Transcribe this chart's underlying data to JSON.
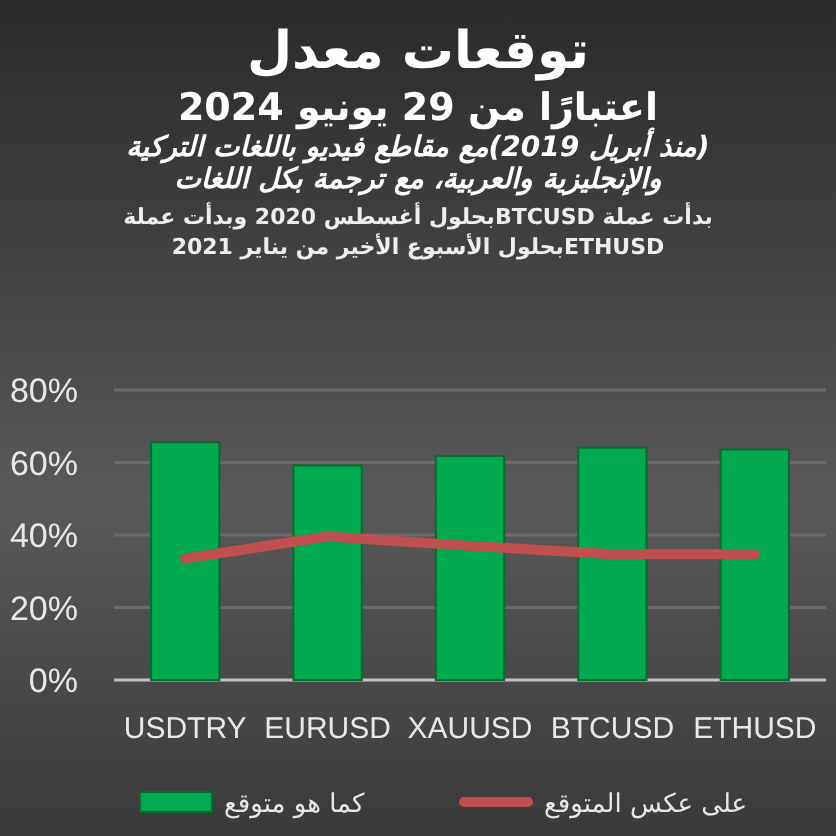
{
  "chart_data": {
    "type": "bar",
    "title": "توقعات معدل",
    "subtitle": "اعتبارًا من 29 يونيو 2024",
    "annotations": [
      "(منذ أبريل 2019)مع مقاطع فيديو باللغات التركية والإنجليزية والعربية، مع ترجمة بكل اللغات",
      "بدأت عملة  BTCUSDبحلول أغسطس 2020 وبدأت عملة ETHUSDبحلول الأسبوع الأخير من يناير 2021"
    ],
    "categories": [
      "USDTRY",
      "EURUSD",
      "XAUUSD",
      "BTCUSD",
      "ETHUSD"
    ],
    "series": [
      {
        "name": "كما هو متوقع",
        "color": "#00a850",
        "values": [
          65.6,
          59.2,
          61.8,
          64.1,
          63.6
        ]
      },
      {
        "name": "على عكس المتوقع",
        "type": "line",
        "color": "#c0504d",
        "values": [
          33.5,
          39.6,
          37,
          34.7,
          34.7
        ]
      }
    ],
    "ylim": [
      0,
      80
    ],
    "yticks": [
      {
        "value": 0,
        "label": "0%"
      },
      {
        "value": 20,
        "label": "20%"
      },
      {
        "value": 40,
        "label": "40%"
      },
      {
        "value": 60,
        "label": "60%"
      },
      {
        "value": 80,
        "label": "80%"
      }
    ],
    "grid": "y",
    "legend": "bottom",
    "marker": "none"
  }
}
